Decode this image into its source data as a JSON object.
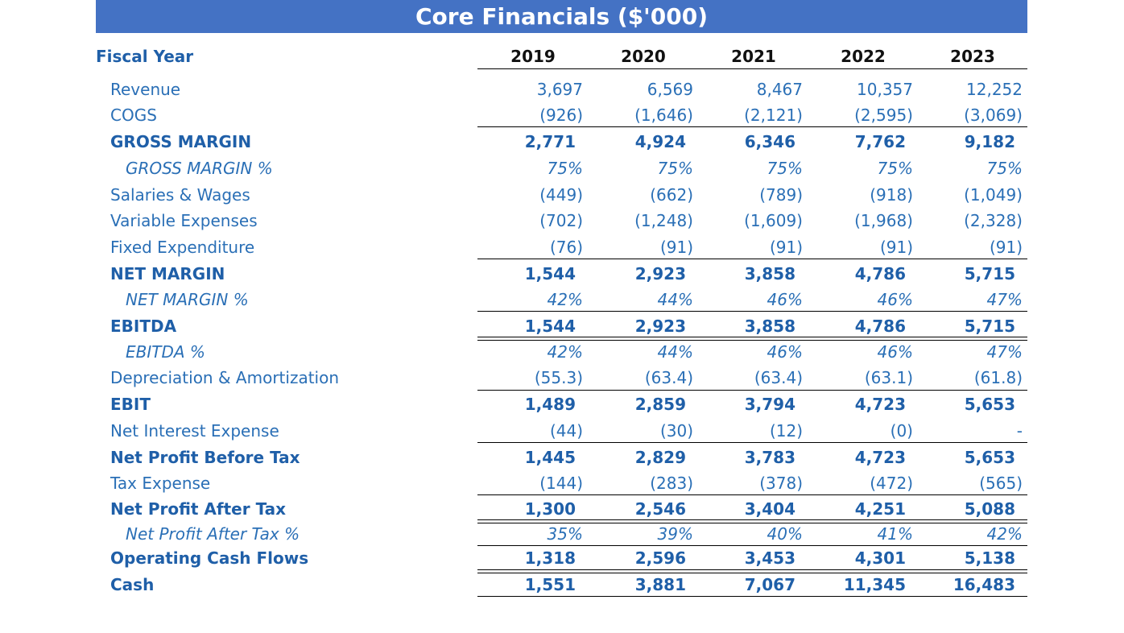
{
  "title": "Core Financials ($'000)",
  "header": {
    "fiscal_year_label": "Fiscal Year",
    "years": [
      "2019",
      "2020",
      "2021",
      "2022",
      "2023"
    ]
  },
  "rows": [
    {
      "label": "Revenue",
      "style": "normal",
      "values": [
        "3,697",
        "6,569",
        "8,467",
        "10,357",
        "12,252"
      ]
    },
    {
      "label": "COGS",
      "style": "normal",
      "values": [
        "(926)",
        "(1,646)",
        "(2,121)",
        "(2,595)",
        "(3,069)"
      ]
    },
    {
      "label": "GROSS MARGIN",
      "style": "bold",
      "values": [
        "2,771",
        "4,924",
        "6,346",
        "7,762",
        "9,182"
      ]
    },
    {
      "label": "GROSS MARGIN %",
      "style": "pct",
      "values": [
        "75%",
        "75%",
        "75%",
        "75%",
        "75%"
      ]
    },
    {
      "label": "Salaries & Wages",
      "style": "normal",
      "values": [
        "(449)",
        "(662)",
        "(789)",
        "(918)",
        "(1,049)"
      ]
    },
    {
      "label": "Variable Expenses",
      "style": "normal",
      "values": [
        "(702)",
        "(1,248)",
        "(1,609)",
        "(1,968)",
        "(2,328)"
      ]
    },
    {
      "label": "Fixed Expenditure",
      "style": "normal",
      "values": [
        "(76)",
        "(91)",
        "(91)",
        "(91)",
        "(91)"
      ]
    },
    {
      "label": "NET MARGIN",
      "style": "bold",
      "values": [
        "1,544",
        "2,923",
        "3,858",
        "4,786",
        "5,715"
      ]
    },
    {
      "label": "NET MARGIN %",
      "style": "pct",
      "values": [
        "42%",
        "44%",
        "46%",
        "46%",
        "47%"
      ]
    },
    {
      "label": "EBITDA",
      "style": "bold",
      "values": [
        "1,544",
        "2,923",
        "3,858",
        "4,786",
        "5,715"
      ]
    },
    {
      "label": "EBITDA %",
      "style": "pct",
      "values": [
        "42%",
        "44%",
        "46%",
        "46%",
        "47%"
      ]
    },
    {
      "label": "Depreciation & Amortization",
      "style": "normal",
      "values": [
        "(55.3)",
        "(63.4)",
        "(63.4)",
        "(63.1)",
        "(61.8)"
      ]
    },
    {
      "label": "EBIT",
      "style": "bold",
      "values": [
        "1,489",
        "2,859",
        "3,794",
        "4,723",
        "5,653"
      ]
    },
    {
      "label": "Net Interest Expense",
      "style": "normal",
      "values": [
        "(44)",
        "(30)",
        "(12)",
        "(0)",
        "-"
      ]
    },
    {
      "label": "Net Profit Before Tax",
      "style": "bold",
      "values": [
        "1,445",
        "2,829",
        "3,783",
        "4,723",
        "5,653"
      ]
    },
    {
      "label": "Tax Expense",
      "style": "normal",
      "values": [
        "(144)",
        "(283)",
        "(378)",
        "(472)",
        "(565)"
      ]
    },
    {
      "label": "Net Profit After Tax",
      "style": "bold",
      "values": [
        "1,300",
        "2,546",
        "3,404",
        "4,251",
        "5,088"
      ]
    },
    {
      "label": "Net Profit After Tax %",
      "style": "pct",
      "values": [
        "35%",
        "39%",
        "40%",
        "41%",
        "42%"
      ]
    },
    {
      "label": "Operating Cash Flows",
      "style": "bold",
      "values": [
        "1,318",
        "2,596",
        "3,453",
        "4,301",
        "5,138"
      ]
    },
    {
      "label": "Cash",
      "style": "bold",
      "values": [
        "1,551",
        "3,881",
        "7,067",
        "11,345",
        "16,483"
      ]
    }
  ]
}
